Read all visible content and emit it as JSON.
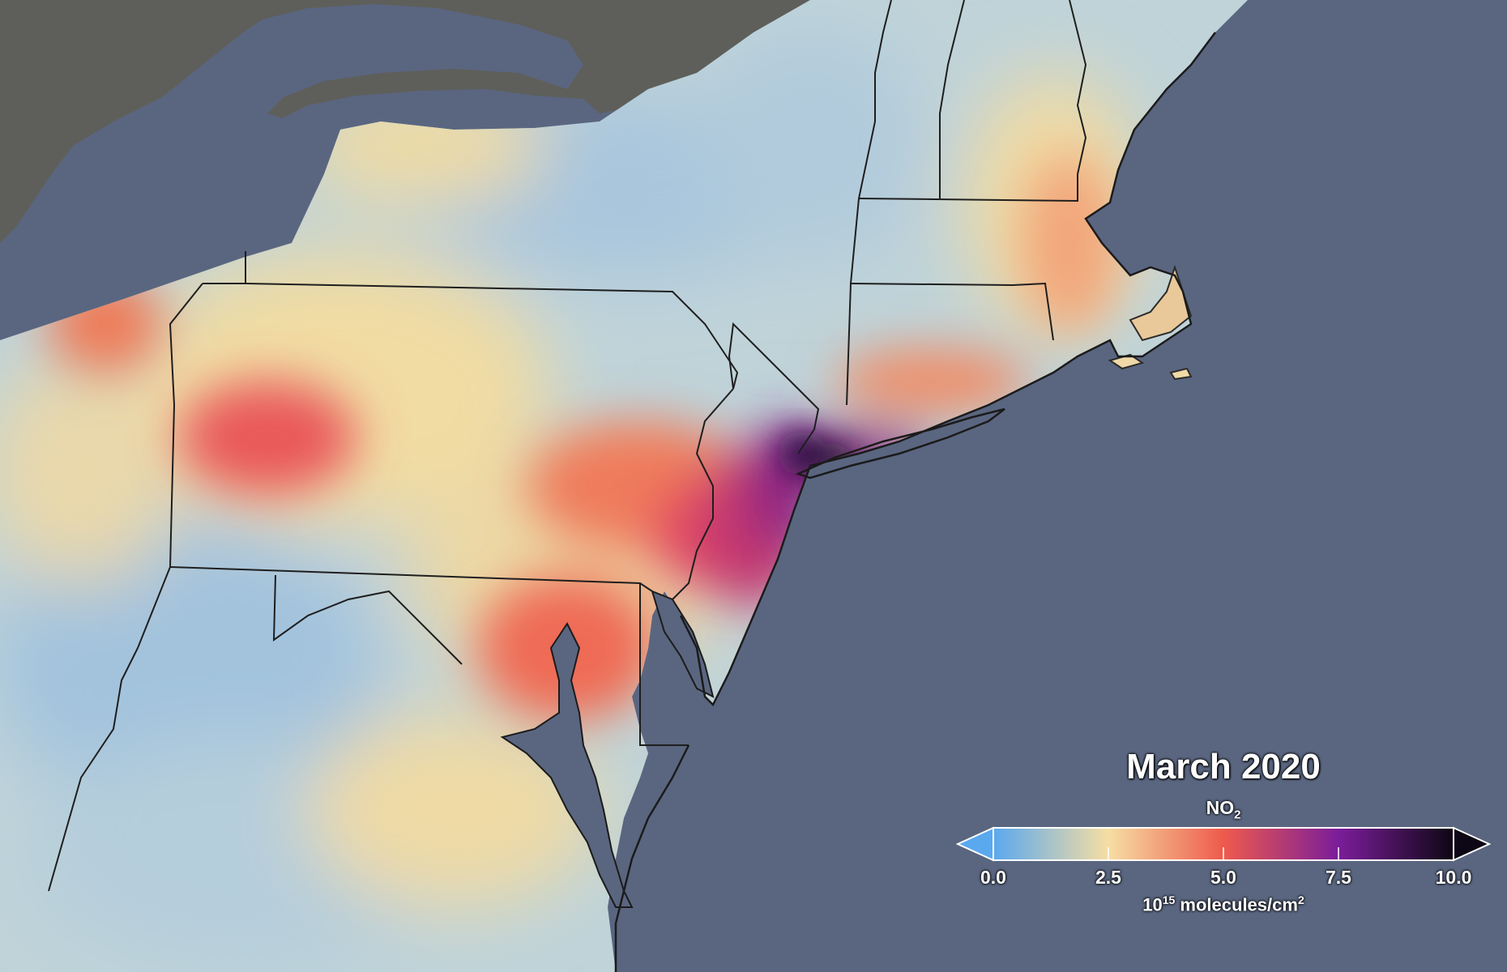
{
  "legend": {
    "title": "March 2020",
    "gas_main": "NO",
    "gas_sub": "2",
    "ticks": [
      "0.0",
      "2.5",
      "5.0",
      "7.5",
      "10.0"
    ],
    "units_base": "10",
    "units_exp": "15",
    "units_mid": " molecules/cm",
    "units_exp2": "2",
    "scale_min": 0.0,
    "scale_max": 10.0
  },
  "colors": {
    "ocean": "#5a6680",
    "canada_land": "#5e5f5a",
    "low": "#9fc2df",
    "mid": "#f6dfa1",
    "high": "#ee5b4c",
    "very_high": "#8a1d7d",
    "max": "#140726"
  }
}
